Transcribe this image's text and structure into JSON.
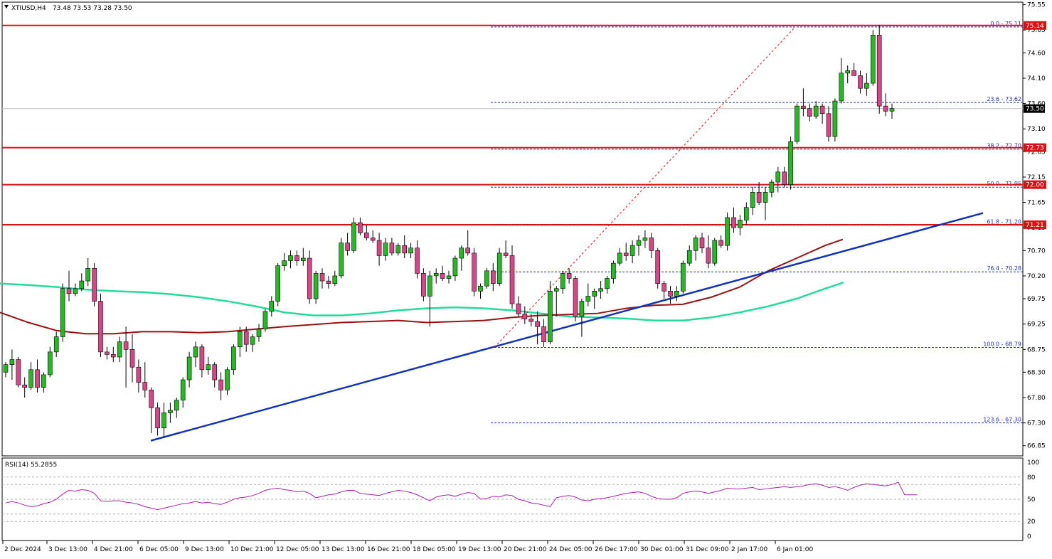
{
  "header": {
    "symbol": "XTIUSD,H4",
    "ohlc": "73.48 73.53 73.28 73.50"
  },
  "colors": {
    "bull": "#22bb22",
    "bear": "#dd4488",
    "resistance": "#dd1111",
    "trendline": "#1133bb",
    "ma_fast": "#991111",
    "ma_slow": "#22dd99",
    "fib": "#2233aa",
    "rsi": "#aa22aa"
  },
  "chart_data": {
    "type": "candlestick",
    "y_range": [
      66.65,
      75.6
    ],
    "y_ticks": [
      "75.55",
      "75.05",
      "74.60",
      "74.10",
      "73.60",
      "73.10",
      "72.65",
      "72.15",
      "71.65",
      "71.15",
      "70.70",
      "70.20",
      "69.75",
      "69.25",
      "68.75",
      "68.30",
      "67.80",
      "67.30",
      "66.85"
    ],
    "x_labels": [
      "2 Dec 2024",
      "3 Dec 13:00",
      "4 Dec 21:00",
      "6 Dec 05:00",
      "9 Dec 13:00",
      "10 Dec 21:00",
      "12 Dec 05:00",
      "13 Dec 13:00",
      "16 Dec 21:00",
      "18 Dec 05:00",
      "19 Dec 13:00",
      "20 Dec 21:00",
      "24 Dec 05:00",
      "26 Dec 17:00",
      "30 Dec 01:00",
      "31 Dec 09:00",
      "2 Jan 17:00",
      "6 Jan 01:00"
    ],
    "current_price": "73.50",
    "resistance_levels": [
      {
        "value": 75.14,
        "label": "75.14"
      },
      {
        "value": 72.73,
        "label": "72.73"
      },
      {
        "value": 72.0,
        "label": "72.00"
      },
      {
        "value": 71.21,
        "label": "71.21"
      }
    ],
    "fibonacci": [
      {
        "value": 75.11,
        "label": "0.0 - 75.11"
      },
      {
        "value": 73.62,
        "label": "23.6 - 73.62"
      },
      {
        "value": 72.7,
        "label": "38.2 - 72.70"
      },
      {
        "value": 71.95,
        "label": "50.0 - 71.95"
      },
      {
        "value": 71.2,
        "label": "61.8 - 71.20"
      },
      {
        "value": 70.28,
        "label": "76.4 - 70.28"
      },
      {
        "value": 68.79,
        "label": "100.0 - 68.79"
      },
      {
        "value": 67.3,
        "label": "123.6 - 67.30"
      }
    ],
    "trendline": [
      [
        0,
        66.95
      ],
      [
        1170,
        71.44
      ]
    ],
    "candles": [
      [
        68.3,
        68.5,
        68.2,
        68.45
      ],
      [
        68.45,
        68.75,
        68.15,
        68.55
      ],
      [
        68.55,
        68.6,
        68.0,
        68.05
      ],
      [
        68.05,
        68.2,
        67.8,
        68.0
      ],
      [
        68.0,
        68.5,
        67.95,
        68.35
      ],
      [
        68.35,
        68.55,
        67.9,
        68.0
      ],
      [
        68.0,
        68.3,
        67.9,
        68.25
      ],
      [
        68.25,
        68.8,
        68.2,
        68.7
      ],
      [
        68.7,
        69.1,
        68.6,
        69.0
      ],
      [
        69.0,
        70.05,
        68.9,
        69.95
      ],
      [
        69.95,
        70.3,
        69.7,
        69.85
      ],
      [
        69.85,
        70.05,
        69.8,
        69.95
      ],
      [
        69.95,
        70.25,
        69.9,
        70.1
      ],
      [
        70.1,
        70.55,
        70.0,
        70.35
      ],
      [
        70.35,
        70.45,
        69.6,
        69.7
      ],
      [
        69.7,
        69.85,
        68.6,
        68.7
      ],
      [
        68.7,
        68.8,
        68.55,
        68.65
      ],
      [
        68.65,
        68.8,
        68.5,
        68.6
      ],
      [
        68.6,
        69.0,
        68.5,
        68.9
      ],
      [
        68.9,
        69.2,
        68.0,
        68.75
      ],
      [
        68.75,
        69.05,
        68.1,
        68.4
      ],
      [
        68.4,
        68.55,
        67.9,
        68.1
      ],
      [
        68.1,
        68.5,
        67.8,
        67.95
      ],
      [
        67.95,
        68.0,
        67.1,
        67.6
      ],
      [
        67.6,
        67.7,
        67.05,
        67.2
      ],
      [
        67.2,
        67.7,
        67.0,
        67.5
      ],
      [
        67.5,
        67.7,
        67.3,
        67.55
      ],
      [
        67.55,
        67.8,
        67.4,
        67.75
      ],
      [
        67.75,
        68.2,
        67.6,
        68.15
      ],
      [
        68.15,
        68.7,
        68.0,
        68.6
      ],
      [
        68.6,
        68.9,
        68.4,
        68.8
      ],
      [
        68.8,
        68.85,
        68.2,
        68.35
      ],
      [
        68.35,
        68.6,
        68.25,
        68.45
      ],
      [
        68.45,
        68.5,
        68.0,
        68.15
      ],
      [
        68.15,
        68.3,
        67.75,
        67.95
      ],
      [
        67.95,
        68.4,
        67.85,
        68.35
      ],
      [
        68.35,
        68.85,
        68.25,
        68.8
      ],
      [
        68.8,
        69.2,
        68.6,
        69.1
      ],
      [
        69.1,
        69.2,
        68.7,
        68.85
      ],
      [
        68.85,
        69.05,
        68.7,
        69.0
      ],
      [
        69.0,
        69.25,
        68.9,
        69.15
      ],
      [
        69.15,
        69.55,
        69.1,
        69.5
      ],
      [
        69.5,
        69.8,
        69.4,
        69.7
      ],
      [
        69.7,
        70.45,
        69.6,
        70.4
      ],
      [
        70.4,
        70.65,
        70.3,
        70.5
      ],
      [
        70.5,
        70.7,
        70.35,
        70.6
      ],
      [
        70.6,
        70.7,
        70.4,
        70.5
      ],
      [
        70.5,
        70.75,
        70.4,
        70.55
      ],
      [
        70.55,
        70.7,
        69.65,
        69.75
      ],
      [
        69.75,
        70.3,
        69.65,
        70.25
      ],
      [
        70.25,
        70.35,
        69.95,
        70.1
      ],
      [
        70.1,
        70.2,
        69.95,
        70.05
      ],
      [
        70.05,
        70.3,
        70.0,
        70.2
      ],
      [
        70.2,
        70.95,
        70.15,
        70.85
      ],
      [
        70.85,
        71.05,
        70.6,
        70.7
      ],
      [
        70.7,
        71.35,
        70.65,
        71.25
      ],
      [
        71.25,
        71.35,
        71.0,
        71.05
      ],
      [
        71.05,
        71.2,
        70.9,
        70.95
      ],
      [
        70.95,
        71.1,
        70.85,
        70.9
      ],
      [
        70.9,
        71.05,
        70.4,
        70.6
      ],
      [
        70.6,
        70.95,
        70.5,
        70.85
      ],
      [
        70.85,
        70.95,
        70.6,
        70.65
      ],
      [
        70.65,
        70.85,
        70.6,
        70.8
      ],
      [
        70.8,
        71.0,
        70.55,
        70.65
      ],
      [
        70.65,
        70.85,
        70.55,
        70.75
      ],
      [
        70.75,
        70.9,
        70.15,
        70.25
      ],
      [
        70.25,
        70.35,
        69.7,
        69.8
      ],
      [
        69.8,
        70.3,
        69.2,
        70.2
      ],
      [
        70.2,
        70.35,
        70.05,
        70.25
      ],
      [
        70.25,
        70.4,
        70.1,
        70.15
      ],
      [
        70.15,
        70.3,
        70.05,
        70.2
      ],
      [
        70.2,
        70.6,
        70.1,
        70.55
      ],
      [
        70.55,
        70.8,
        70.3,
        70.75
      ],
      [
        70.75,
        71.1,
        70.6,
        70.65
      ],
      [
        70.65,
        70.75,
        69.8,
        69.9
      ],
      [
        69.9,
        70.05,
        69.75,
        70.0
      ],
      [
        70.0,
        70.35,
        69.95,
        70.3
      ],
      [
        70.3,
        70.45,
        69.9,
        70.05
      ],
      [
        70.05,
        70.75,
        70.0,
        70.65
      ],
      [
        70.65,
        70.9,
        70.55,
        70.6
      ],
      [
        70.6,
        70.8,
        69.55,
        69.65
      ],
      [
        69.65,
        69.8,
        69.4,
        69.45
      ],
      [
        69.45,
        69.6,
        69.25,
        69.35
      ],
      [
        69.35,
        69.45,
        69.2,
        69.3
      ],
      [
        69.3,
        69.5,
        68.85,
        69.2
      ],
      [
        69.2,
        69.35,
        68.8,
        68.9
      ],
      [
        68.9,
        70.1,
        68.85,
        69.9
      ],
      [
        69.9,
        70.0,
        69.4,
        69.95
      ],
      [
        69.95,
        70.3,
        69.85,
        70.25
      ],
      [
        70.25,
        70.35,
        70.05,
        70.15
      ],
      [
        70.15,
        70.2,
        69.3,
        69.4
      ],
      [
        69.4,
        69.75,
        69.0,
        69.7
      ],
      [
        69.7,
        70.05,
        69.6,
        69.8
      ],
      [
        69.8,
        69.95,
        69.55,
        69.9
      ],
      [
        69.9,
        70.1,
        69.75,
        69.95
      ],
      [
        69.95,
        70.2,
        69.85,
        70.15
      ],
      [
        70.15,
        70.5,
        70.05,
        70.45
      ],
      [
        70.45,
        70.75,
        70.4,
        70.65
      ],
      [
        70.65,
        70.85,
        70.5,
        70.6
      ],
      [
        70.6,
        70.9,
        70.45,
        70.8
      ],
      [
        70.8,
        71.0,
        70.6,
        70.9
      ],
      [
        70.9,
        71.1,
        70.75,
        70.95
      ],
      [
        70.95,
        71.05,
        70.55,
        70.7
      ],
      [
        70.7,
        70.75,
        69.95,
        70.05
      ],
      [
        70.05,
        70.1,
        69.75,
        69.9
      ],
      [
        69.9,
        70.0,
        69.65,
        69.8
      ],
      [
        69.8,
        70.0,
        69.7,
        69.9
      ],
      [
        69.9,
        70.5,
        69.85,
        70.45
      ],
      [
        70.45,
        70.8,
        70.4,
        70.7
      ],
      [
        70.7,
        71.0,
        70.5,
        70.95
      ],
      [
        70.95,
        71.05,
        70.65,
        70.75
      ],
      [
        70.75,
        71.0,
        70.35,
        70.45
      ],
      [
        70.45,
        70.95,
        70.4,
        70.9
      ],
      [
        70.9,
        71.0,
        70.75,
        70.8
      ],
      [
        70.8,
        71.45,
        70.7,
        71.35
      ],
      [
        71.35,
        71.55,
        71.05,
        71.15
      ],
      [
        71.15,
        71.4,
        71.0,
        71.3
      ],
      [
        71.3,
        71.65,
        71.2,
        71.55
      ],
      [
        71.55,
        71.95,
        71.4,
        71.85
      ],
      [
        71.85,
        72.05,
        71.6,
        71.65
      ],
      [
        71.65,
        71.95,
        71.3,
        71.85
      ],
      [
        71.85,
        72.1,
        71.75,
        72.05
      ],
      [
        72.05,
        72.35,
        71.85,
        72.25
      ],
      [
        72.25,
        72.35,
        71.95,
        72.0
      ],
      [
        72.0,
        72.95,
        71.9,
        72.85
      ],
      [
        72.85,
        73.6,
        72.8,
        73.55
      ],
      [
        73.55,
        73.9,
        73.35,
        73.5
      ],
      [
        73.5,
        73.6,
        73.25,
        73.35
      ],
      [
        73.35,
        73.65,
        73.3,
        73.55
      ],
      [
        73.55,
        73.6,
        73.2,
        73.4
      ],
      [
        73.4,
        73.55,
        72.85,
        72.95
      ],
      [
        72.95,
        73.7,
        72.85,
        73.65
      ],
      [
        73.65,
        74.5,
        73.6,
        74.2
      ],
      [
        74.2,
        74.35,
        74.0,
        74.25
      ],
      [
        74.25,
        74.4,
        74.15,
        74.15
      ],
      [
        74.15,
        74.25,
        73.8,
        73.9
      ],
      [
        73.9,
        74.2,
        73.75,
        74.0
      ],
      [
        74.0,
        75.05,
        73.95,
        74.95
      ],
      [
        74.95,
        75.15,
        73.4,
        73.55
      ],
      [
        73.55,
        73.8,
        73.35,
        73.45
      ],
      [
        73.45,
        73.6,
        73.3,
        73.5
      ]
    ],
    "rsi": {
      "label": "RSI(14) 55.2855",
      "range": [
        0,
        100
      ],
      "levels": [
        80,
        70,
        50,
        30,
        20
      ],
      "tick_labels": [
        "100",
        "80",
        "50",
        "20",
        "0"
      ],
      "values": [
        45,
        47,
        45,
        42,
        40,
        41,
        44,
        46,
        50,
        57,
        62,
        61,
        63,
        62,
        58,
        48,
        47,
        48,
        48,
        46,
        45,
        43,
        40,
        38,
        36,
        38,
        40,
        42,
        44,
        45,
        47,
        45,
        46,
        44,
        43,
        46,
        50,
        52,
        53,
        55,
        58,
        62,
        64,
        65,
        63,
        62,
        60,
        61,
        58,
        52,
        54,
        56,
        57,
        60,
        62,
        62,
        58,
        57,
        56,
        55,
        58,
        60,
        62,
        61,
        59,
        56,
        52,
        48,
        53,
        55,
        56,
        54,
        57,
        59,
        58,
        50,
        51,
        54,
        53,
        56,
        55,
        50,
        48,
        45,
        44,
        42,
        40,
        52,
        54,
        55,
        53,
        49,
        48,
        50,
        51,
        52,
        54,
        56,
        58,
        59,
        60,
        58,
        54,
        51,
        50,
        50,
        52,
        58,
        60,
        61,
        60,
        58,
        60,
        62,
        65,
        64,
        64,
        65,
        66,
        63,
        64,
        65,
        66,
        67,
        66,
        67,
        68,
        70,
        71,
        69,
        66,
        67,
        65,
        62,
        66,
        69,
        71,
        70,
        69,
        68,
        70,
        73,
        56,
        56,
        56
      ]
    },
    "ma_fast": [
      [
        0,
        69.48
      ],
      [
        40,
        69.28
      ],
      [
        80,
        69.12
      ],
      [
        120,
        69.06
      ],
      [
        160,
        69.06
      ],
      [
        200,
        69.1
      ],
      [
        240,
        69.1
      ],
      [
        280,
        69.08
      ],
      [
        320,
        69.1
      ],
      [
        360,
        69.15
      ],
      [
        400,
        69.2
      ],
      [
        440,
        69.24
      ],
      [
        480,
        69.28
      ],
      [
        520,
        69.3
      ],
      [
        560,
        69.32
      ],
      [
        600,
        69.28
      ],
      [
        640,
        69.3
      ],
      [
        680,
        69.32
      ],
      [
        720,
        69.38
      ],
      [
        760,
        69.42
      ],
      [
        800,
        69.44
      ],
      [
        840,
        69.46
      ],
      [
        880,
        69.56
      ],
      [
        920,
        69.62
      ],
      [
        960,
        69.64
      ],
      [
        1000,
        69.78
      ],
      [
        1040,
        69.98
      ],
      [
        1080,
        70.3
      ],
      [
        1120,
        70.55
      ],
      [
        1160,
        70.8
      ],
      [
        1185,
        70.92
      ]
    ],
    "ma_slow": [
      [
        0,
        70.05
      ],
      [
        40,
        70.02
      ],
      [
        80,
        69.98
      ],
      [
        120,
        69.93
      ],
      [
        160,
        69.9
      ],
      [
        200,
        69.88
      ],
      [
        240,
        69.84
      ],
      [
        280,
        69.78
      ],
      [
        320,
        69.7
      ],
      [
        360,
        69.6
      ],
      [
        400,
        69.48
      ],
      [
        440,
        69.42
      ],
      [
        480,
        69.42
      ],
      [
        520,
        69.46
      ],
      [
        560,
        69.52
      ],
      [
        600,
        69.56
      ],
      [
        640,
        69.58
      ],
      [
        680,
        69.56
      ],
      [
        720,
        69.52
      ],
      [
        760,
        69.46
      ],
      [
        800,
        69.4
      ],
      [
        840,
        69.38
      ],
      [
        880,
        69.36
      ],
      [
        920,
        69.32
      ],
      [
        960,
        69.32
      ],
      [
        1000,
        69.38
      ],
      [
        1040,
        69.48
      ],
      [
        1080,
        69.6
      ],
      [
        1120,
        69.75
      ],
      [
        1160,
        69.95
      ],
      [
        1186,
        70.07
      ]
    ]
  }
}
